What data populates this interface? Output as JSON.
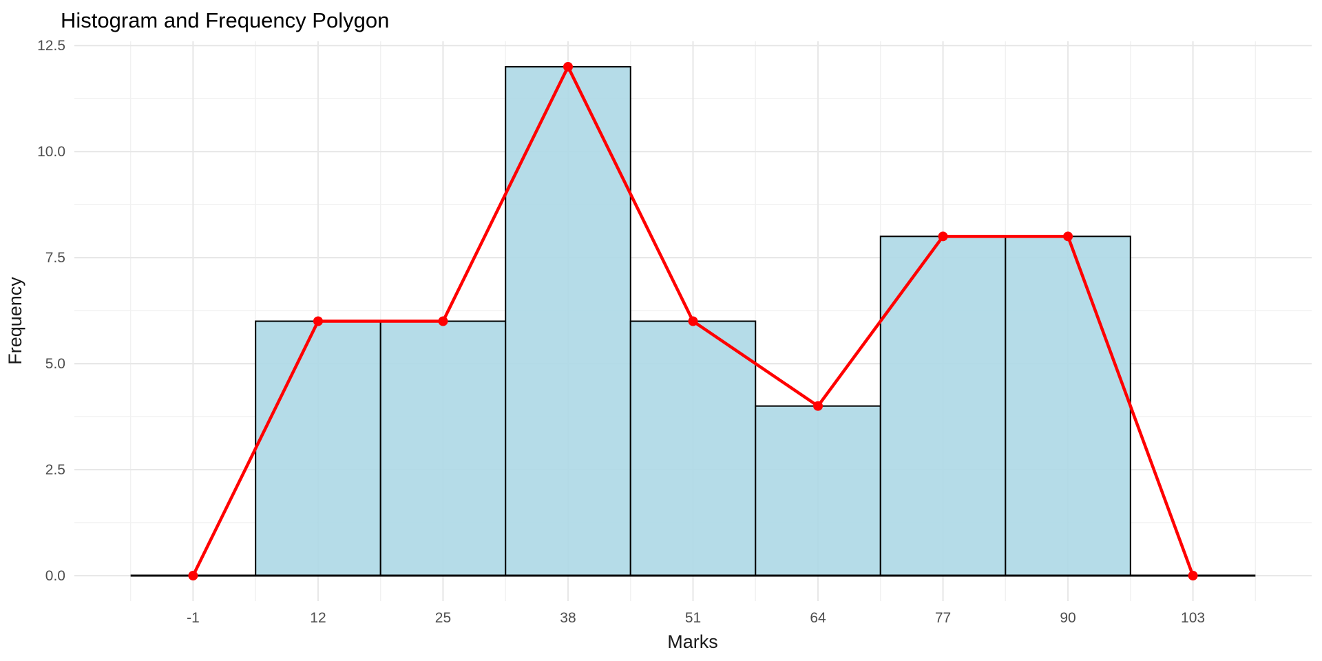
{
  "page": {
    "background": "#FFFFFF"
  },
  "chart_data": {
    "type": "histogram",
    "title": "Histogram and Frequency Polygon",
    "xlabel": "Marks",
    "ylabel": "Frequency",
    "bin_width": 13,
    "bin_centers": [
      12,
      25,
      38,
      51,
      64,
      77,
      90
    ],
    "frequencies": [
      6,
      6,
      12,
      6,
      4,
      8,
      8
    ],
    "overlay": {
      "type": "line",
      "name": "frequency-polygon",
      "x": [
        -1,
        12,
        25,
        38,
        51,
        64,
        77,
        90,
        103
      ],
      "y": [
        0,
        6,
        6,
        12,
        6,
        4,
        8,
        8,
        0
      ]
    },
    "x_ticks": [
      "-1",
      "12",
      "25",
      "38",
      "51",
      "64",
      "77",
      "90",
      "103"
    ],
    "x_tick_values": [
      -1,
      12,
      25,
      38,
      51,
      64,
      77,
      90,
      103
    ],
    "y_ticks": [
      "0.0",
      "2.5",
      "5.0",
      "7.5",
      "10.0",
      "12.5"
    ],
    "y_tick_values": [
      0,
      2.5,
      5,
      7.5,
      10,
      12.5
    ],
    "x_minor_values": [
      -7.5,
      5.5,
      18.5,
      31.5,
      44.5,
      57.5,
      70.5,
      83.5,
      96.5,
      109.5
    ],
    "y_minor_values": [
      1.25,
      3.75,
      6.25,
      8.75,
      11.25
    ],
    "xlim": [
      -13.35,
      115.35
    ],
    "ylim": [
      -0.6,
      12.6
    ],
    "baseline": {
      "y": 0,
      "x_start": -7.5,
      "x_end": 109.5
    },
    "grid": true,
    "legend": false,
    "colors": {
      "bar_fill": "#ADD8E6",
      "bar_stroke": "#000000",
      "polygon_line": "#FF0000",
      "polygon_point": "#FF0000",
      "grid_major": "#E8E8E8",
      "grid_minor": "#F1F1F1",
      "baseline": "#000000",
      "tick_text": "#4D4D4D",
      "axis_title_text": "#1A1A1A",
      "title_text": "#000000"
    }
  }
}
